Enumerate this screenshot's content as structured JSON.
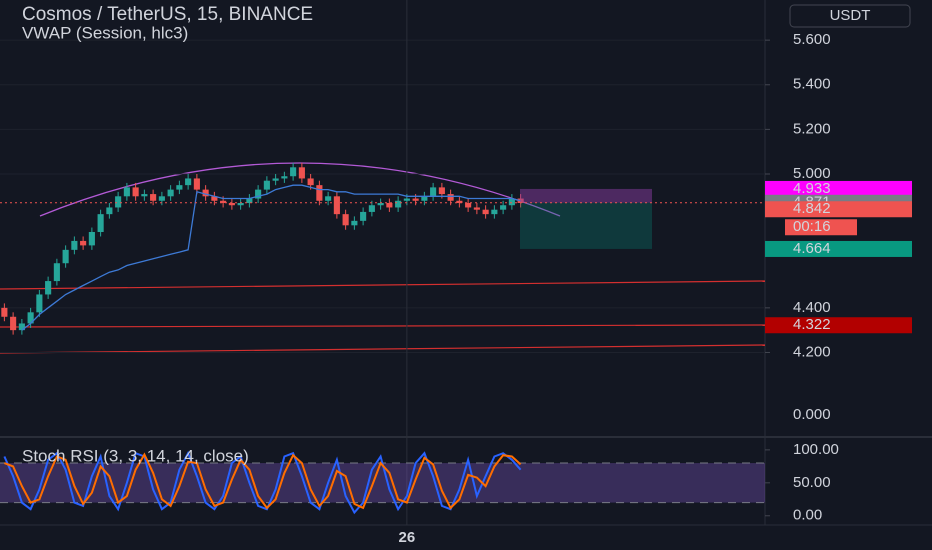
{
  "header": {
    "currency_button": "USDT",
    "extra_axis_label": "0.000"
  },
  "chart_data": [
    {
      "type": "candlestick",
      "title": "Cosmos / TetherUS, 15, BINANCE",
      "categories": [
        null,
        null,
        null,
        null,
        null,
        null,
        null,
        null,
        null,
        null,
        null,
        null,
        null,
        null,
        null,
        null,
        null,
        null,
        null,
        null,
        null,
        null,
        null,
        null,
        null,
        null,
        null,
        null,
        null,
        null,
        null,
        null,
        null,
        null,
        null,
        null,
        null,
        null,
        null,
        null,
        null,
        null,
        null,
        null,
        null,
        null,
        "26",
        null,
        null,
        null,
        null,
        null,
        null,
        null,
        null,
        null,
        null,
        null,
        null,
        null
      ],
      "open": [
        4.4,
        4.36,
        4.3,
        4.33,
        4.38,
        4.46,
        4.52,
        4.6,
        4.66,
        4.7,
        4.68,
        4.74,
        4.82,
        4.85,
        4.9,
        4.94,
        4.9,
        4.91,
        4.88,
        4.9,
        4.93,
        4.95,
        4.98,
        4.93,
        4.9,
        4.88,
        4.87,
        4.86,
        4.87,
        4.89,
        4.93,
        4.97,
        4.98,
        4.99,
        5.03,
        4.98,
        4.95,
        4.88,
        4.9,
        4.82,
        4.77,
        4.79,
        4.83,
        4.86,
        4.87,
        4.85,
        4.88,
        4.89,
        4.88,
        4.9,
        4.94,
        4.91,
        4.88,
        4.87,
        4.85,
        4.84,
        4.82,
        4.84,
        4.86,
        4.89
      ],
      "high": [
        4.42,
        4.38,
        4.35,
        4.4,
        4.48,
        4.54,
        4.62,
        4.68,
        4.72,
        4.72,
        4.76,
        4.84,
        4.87,
        4.92,
        4.96,
        4.96,
        4.93,
        4.93,
        4.92,
        4.95,
        4.97,
        5.0,
        5.0,
        4.95,
        4.92,
        4.9,
        4.89,
        4.89,
        4.91,
        4.95,
        4.99,
        5.0,
        5.01,
        5.05,
        5.05,
        5.0,
        4.97,
        4.92,
        4.92,
        4.84,
        4.81,
        4.85,
        4.88,
        4.89,
        4.89,
        4.9,
        4.91,
        4.91,
        4.92,
        4.96,
        4.96,
        4.93,
        4.9,
        4.89,
        4.87,
        4.86,
        4.86,
        4.88,
        4.91,
        4.91
      ],
      "low": [
        4.34,
        4.28,
        4.28,
        4.31,
        4.36,
        4.44,
        4.5,
        4.58,
        4.64,
        4.66,
        4.66,
        4.72,
        4.8,
        4.83,
        4.88,
        4.88,
        4.88,
        4.86,
        4.86,
        4.88,
        4.91,
        4.93,
        4.91,
        4.88,
        4.86,
        4.85,
        4.84,
        4.84,
        4.85,
        4.87,
        4.91,
        4.95,
        4.96,
        4.97,
        4.96,
        4.93,
        4.86,
        4.86,
        4.8,
        4.75,
        4.75,
        4.77,
        4.81,
        4.84,
        4.83,
        4.83,
        4.86,
        4.86,
        4.86,
        4.88,
        4.89,
        4.86,
        4.85,
        4.83,
        4.82,
        4.8,
        4.8,
        4.82,
        4.84,
        4.85
      ],
      "close": [
        4.36,
        4.3,
        4.33,
        4.38,
        4.46,
        4.52,
        4.6,
        4.66,
        4.7,
        4.68,
        4.74,
        4.82,
        4.85,
        4.9,
        4.94,
        4.9,
        4.91,
        4.88,
        4.9,
        4.93,
        4.95,
        4.98,
        4.93,
        4.9,
        4.88,
        4.87,
        4.86,
        4.87,
        4.89,
        4.93,
        4.97,
        4.98,
        4.99,
        5.03,
        4.98,
        4.95,
        4.88,
        4.9,
        4.82,
        4.77,
        4.79,
        4.83,
        4.86,
        4.87,
        4.85,
        4.88,
        4.89,
        4.88,
        4.9,
        4.94,
        4.91,
        4.88,
        4.87,
        4.85,
        4.84,
        4.82,
        4.84,
        4.86,
        4.89,
        4.87
      ],
      "up_color": "#26a69a",
      "down_color": "#ef5350",
      "series": [
        {
          "name": "VWAP (Session, hlc3)",
          "color": "#3d7ad6",
          "values": [
            null,
            null,
            4.3,
            4.33,
            4.37,
            4.4,
            4.43,
            4.46,
            4.48,
            4.5,
            4.52,
            4.54,
            4.56,
            4.57,
            4.59,
            4.6,
            4.61,
            4.62,
            4.63,
            4.64,
            4.65,
            4.66,
            4.92,
            4.91,
            4.9,
            4.89,
            4.89,
            4.89,
            4.89,
            4.9,
            4.91,
            4.93,
            4.94,
            4.95,
            4.95,
            4.94,
            4.93,
            4.93,
            4.92,
            4.92,
            4.91,
            4.91,
            4.91,
            4.91,
            4.91,
            4.91,
            4.9,
            4.9,
            4.9,
            4.9,
            4.9,
            4.9,
            4.9,
            4.89,
            4.89,
            4.89,
            4.89,
            4.89,
            4.89,
            4.88
          ]
        }
      ],
      "ylim": [
        3.83,
        5.78
      ],
      "yticks": [
        {
          "value": 5.6,
          "label": "5.600"
        },
        {
          "value": 5.4,
          "label": "5.400"
        },
        {
          "value": 5.2,
          "label": "5.200"
        },
        {
          "value": 5.0,
          "label": "5.000"
        },
        {
          "value": 4.4,
          "label": "4.400"
        },
        {
          "value": 4.2,
          "label": "4.200"
        }
      ],
      "grid": true,
      "price_labels": [
        {
          "value": 4.933,
          "color": "#ff00ff"
        },
        {
          "value": 4.871,
          "color": "#787b86"
        },
        {
          "value": 4.842,
          "color": "#ef5350"
        },
        {
          "value": 4.664,
          "color": "#089981"
        },
        {
          "value": 4.322,
          "color": "#b20000"
        }
      ],
      "countdown": {
        "label": "00:16",
        "color": "#ef5350"
      }
    },
    {
      "type": "line",
      "title": "Stoch RSI (3, 3, 14, 14, close)",
      "series": [
        {
          "color": "#2962ff",
          "values": [
            90,
            60,
            20,
            10,
            40,
            85,
            95,
            70,
            20,
            15,
            60,
            90,
            30,
            10,
            50,
            95,
            90,
            40,
            10,
            20,
            70,
            95,
            60,
            20,
            10,
            30,
            80,
            90,
            50,
            15,
            10,
            40,
            90,
            95,
            60,
            20,
            10,
            50,
            85,
            30,
            5,
            20,
            70,
            90,
            40,
            10,
            30,
            80,
            95,
            60,
            15,
            10,
            40,
            85,
            30,
            60,
            90,
            95,
            85,
            70
          ]
        },
        {
          "color": "#ff6d00",
          "values": [
            80,
            75,
            45,
            20,
            25,
            60,
            90,
            85,
            45,
            18,
            35,
            75,
            60,
            20,
            30,
            70,
            93,
            65,
            25,
            15,
            45,
            82,
            80,
            40,
            15,
            20,
            55,
            85,
            70,
            30,
            12,
            25,
            65,
            92,
            80,
            40,
            15,
            30,
            68,
            60,
            18,
            12,
            45,
            80,
            65,
            25,
            20,
            55,
            88,
            78,
            38,
            12,
            25,
            62,
            58,
            45,
            75,
            92,
            90,
            78
          ]
        }
      ],
      "band": [
        20,
        80
      ],
      "ylim": [
        -14,
        115
      ],
      "yticks": [
        {
          "value": 100,
          "label": "100.00"
        },
        {
          "value": 50,
          "label": "50.00"
        },
        {
          "value": 0,
          "label": "0.00"
        }
      ]
    }
  ]
}
